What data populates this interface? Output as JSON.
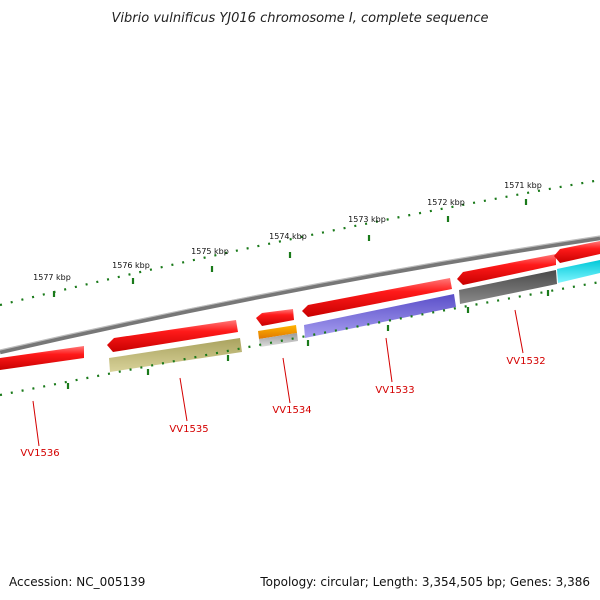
{
  "title": "Vibrio vulnificus YJ016 chromosome I, complete sequence",
  "footer": {
    "accession": "Accession: NC_005139",
    "summary": "Topology: circular; Length: 3,354,505 bp; Genes: 3,386"
  },
  "ticks": [
    "1577 kbp",
    "1576 kbp",
    "1575 kbp",
    "1574 kbp",
    "1573 kbp",
    "1572 kbp",
    "1571 kbp"
  ],
  "genes": [
    "VV1536",
    "VV1535",
    "VV1534",
    "VV1533",
    "VV1532"
  ],
  "colors": {
    "backbone": "#808080",
    "forward_gene": "#ff0000",
    "tick": "#1a7a1a",
    "label": "#d40000",
    "olive_feature": "#c8c07a",
    "orange_feature": "#f5a000",
    "purple_feature": "#7b6ee0",
    "dark_feature": "#666666",
    "cyan_feature": "#00e5f0"
  }
}
